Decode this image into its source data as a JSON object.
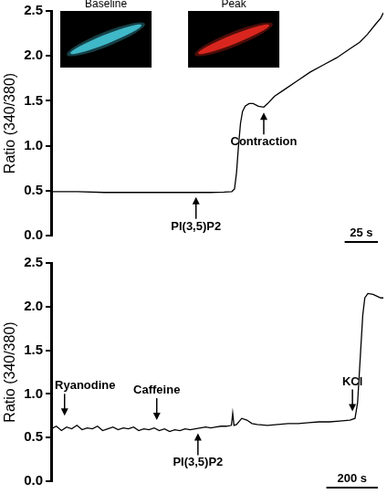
{
  "chart_data": [
    {
      "type": "line",
      "y_label": "Ratio (340/380)",
      "xlim": [
        0,
        250
      ],
      "ylim": [
        0,
        2.5
      ],
      "yticks": [
        {
          "value": 0,
          "label": "0.0"
        },
        0.5,
        {
          "value": 1,
          "label": "1.0"
        },
        1.5,
        {
          "value": 2,
          "label": "2.0"
        },
        2.5
      ],
      "tick_labels": "y",
      "grid": false,
      "color": "#000000",
      "x": [
        0,
        20,
        40,
        60,
        80,
        100,
        110,
        120,
        130,
        136,
        138,
        139.5,
        141,
        142.5,
        144,
        146,
        149,
        152,
        156,
        160,
        163,
        168,
        175,
        185,
        195,
        205,
        215,
        225,
        232,
        238,
        244,
        248,
        250
      ],
      "values": [
        0.49,
        0.49,
        0.48,
        0.48,
        0.48,
        0.48,
        0.48,
        0.48,
        0.485,
        0.49,
        0.52,
        0.7,
        1.0,
        1.25,
        1.38,
        1.44,
        1.47,
        1.47,
        1.44,
        1.43,
        1.47,
        1.55,
        1.62,
        1.72,
        1.82,
        1.9,
        1.98,
        2.08,
        2.15,
        2.24,
        2.35,
        2.42,
        2.48
      ],
      "annotations": [
        {
          "text": "PI(3,5)P2",
          "x": 109,
          "y": 0.43
        },
        {
          "text": "Contraction",
          "x": 160,
          "y": 1.37
        }
      ],
      "scale_bar": {
        "label": "25 s",
        "value": 25
      },
      "images": [
        {
          "title": "Baseline",
          "color": "#3fb8c8"
        },
        {
          "title": "Peak",
          "color": "#d8261e"
        }
      ]
    },
    {
      "type": "line",
      "y_label": "Ratio (340/380)",
      "xlim": [
        0,
        1290
      ],
      "ylim": [
        0,
        2.5
      ],
      "yticks": [
        {
          "value": 0,
          "label": "0.0"
        },
        0.5,
        {
          "value": 1,
          "label": "1.0"
        },
        1.5,
        {
          "value": 2,
          "label": "2.0"
        },
        2.5
      ],
      "tick_labels": "y",
      "grid": false,
      "color": "#000000",
      "x": [
        0,
        20,
        40,
        60,
        80,
        100,
        120,
        140,
        160,
        180,
        200,
        220,
        240,
        260,
        280,
        300,
        320,
        340,
        360,
        380,
        400,
        420,
        440,
        460,
        480,
        500,
        520,
        540,
        560,
        580,
        600,
        620,
        640,
        660,
        680,
        700,
        705,
        710,
        720,
        740,
        760,
        780,
        800,
        840,
        880,
        920,
        960,
        1000,
        1040,
        1080,
        1120,
        1160,
        1180,
        1190,
        1200,
        1210,
        1218,
        1230,
        1250,
        1265,
        1280,
        1290
      ],
      "values": [
        0.6,
        0.63,
        0.58,
        0.62,
        0.6,
        0.64,
        0.59,
        0.61,
        0.6,
        0.63,
        0.58,
        0.6,
        0.62,
        0.59,
        0.61,
        0.6,
        0.62,
        0.58,
        0.6,
        0.59,
        0.61,
        0.58,
        0.6,
        0.57,
        0.59,
        0.58,
        0.6,
        0.59,
        0.6,
        0.61,
        0.62,
        0.61,
        0.62,
        0.63,
        0.63,
        0.64,
        0.78,
        0.64,
        0.65,
        0.72,
        0.7,
        0.66,
        0.65,
        0.64,
        0.65,
        0.66,
        0.66,
        0.67,
        0.68,
        0.68,
        0.69,
        0.7,
        0.72,
        0.9,
        1.4,
        1.9,
        2.1,
        2.15,
        2.14,
        2.12,
        2.1,
        2.1
      ],
      "annotations": [
        {
          "text": "Ryanodine",
          "x": 52,
          "y": 0.75
        },
        {
          "text": "Caffeine",
          "x": 410,
          "y": 0.7
        },
        {
          "text": "PI(3,5)P2",
          "x": 570,
          "y": 0.55
        },
        {
          "text": "KCl",
          "x": 1170,
          "y": 0.8
        }
      ],
      "scale_bar": {
        "label": "200 s",
        "value": 200
      }
    }
  ]
}
